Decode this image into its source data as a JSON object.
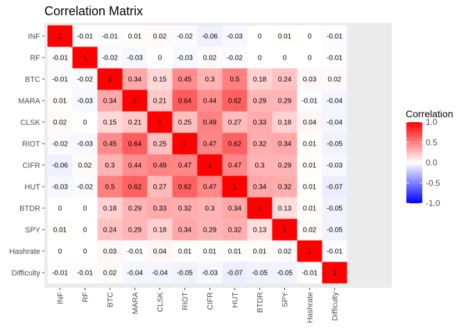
{
  "chart_data": {
    "type": "heatmap",
    "title": "Correlation Matrix",
    "xlabel": "",
    "ylabel": "",
    "variables": [
      "INF",
      "RF",
      "BTC",
      "MARA",
      "CLSK",
      "RIOT",
      "CIFR",
      "HUT",
      "BTDR",
      "SPY",
      "Hashrate",
      "Difficulty"
    ],
    "matrix": [
      [
        1,
        -0.01,
        -0.01,
        0.01,
        0.02,
        -0.02,
        -0.06,
        -0.03,
        0,
        0.01,
        0,
        -0.01
      ],
      [
        -0.01,
        1,
        -0.02,
        -0.03,
        0,
        -0.03,
        0.02,
        -0.02,
        0,
        0,
        0,
        -0.01
      ],
      [
        -0.01,
        -0.02,
        1,
        0.34,
        0.15,
        0.45,
        0.3,
        0.5,
        0.18,
        0.24,
        0.03,
        0.02
      ],
      [
        0.01,
        -0.03,
        0.34,
        1,
        0.21,
        0.64,
        0.44,
        0.62,
        0.29,
        0.29,
        -0.01,
        -0.04
      ],
      [
        0.02,
        0,
        0.15,
        0.21,
        1,
        0.25,
        0.49,
        0.27,
        0.33,
        0.18,
        0.04,
        -0.04
      ],
      [
        -0.02,
        -0.03,
        0.45,
        0.64,
        0.25,
        1,
        0.47,
        0.62,
        0.32,
        0.34,
        0.01,
        -0.05
      ],
      [
        -0.06,
        0.02,
        0.3,
        0.44,
        0.49,
        0.47,
        1,
        0.47,
        0.3,
        0.29,
        0.01,
        -0.03
      ],
      [
        -0.03,
        -0.02,
        0.5,
        0.62,
        0.27,
        0.62,
        0.47,
        1,
        0.34,
        0.32,
        0.01,
        -0.07
      ],
      [
        0,
        0,
        0.18,
        0.29,
        0.33,
        0.32,
        0.3,
        0.34,
        1,
        0.13,
        0.01,
        -0.05
      ],
      [
        0.01,
        0,
        0.24,
        0.29,
        0.18,
        0.34,
        0.29,
        0.32,
        0.13,
        1,
        0.02,
        -0.05
      ],
      [
        0,
        0,
        0.03,
        -0.01,
        0.04,
        0.01,
        0.01,
        0.01,
        0.01,
        0.02,
        1,
        -0.01
      ],
      [
        -0.01,
        -0.01,
        0.02,
        -0.04,
        -0.04,
        -0.05,
        -0.03,
        -0.07,
        -0.05,
        -0.05,
        -0.01,
        1
      ]
    ],
    "legend": {
      "title": "Correlation",
      "placement": "right",
      "range": [
        -1,
        1
      ],
      "ticks": [
        1.0,
        0.5,
        0.0,
        -0.5,
        -1.0
      ],
      "tick_labels": [
        "1.0",
        "0.5",
        "0.0",
        "-0.5",
        "-1.0"
      ]
    },
    "colors": {
      "low": "#0000ff",
      "mid": "#ffffff",
      "high": "#ff0000",
      "panel": "#ebebeb"
    },
    "grid": false
  }
}
